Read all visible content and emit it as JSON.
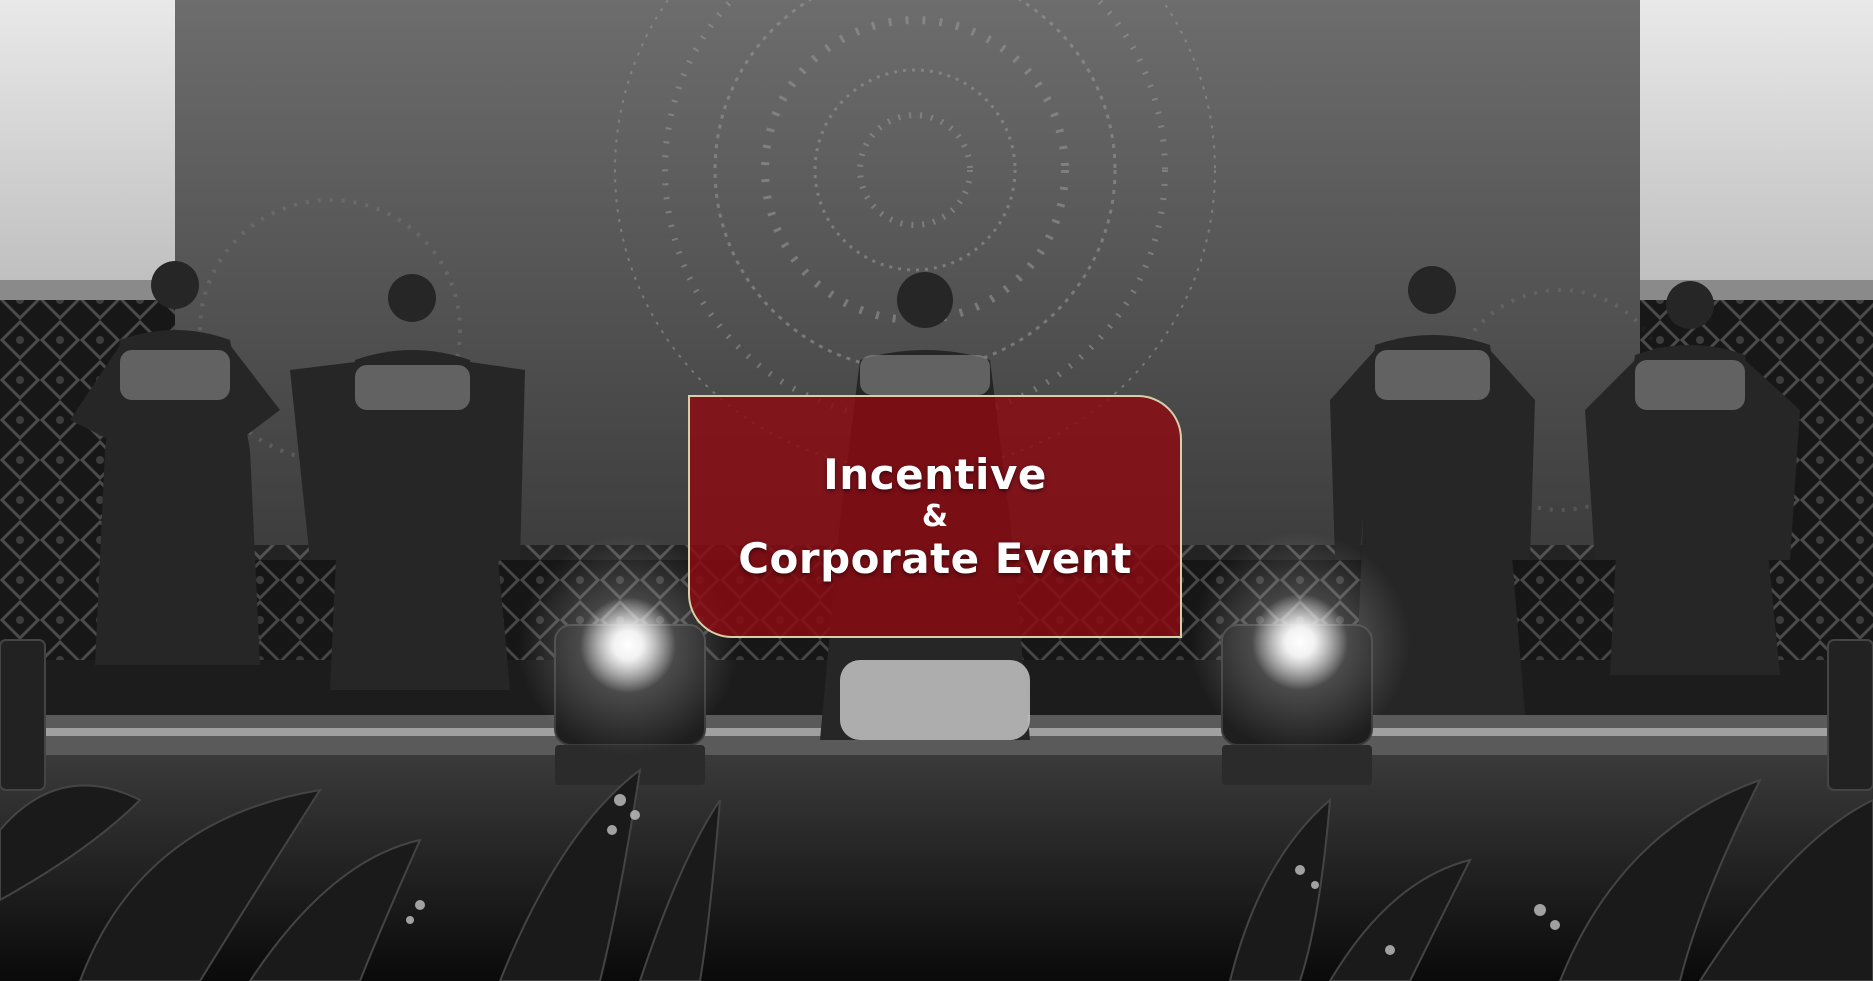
{
  "hero": {
    "title_line1": "Incentive",
    "title_line2": "&",
    "title_line3": "Corporate Event",
    "card_color": "#8c0a12",
    "border_color": "#d8cfa8"
  },
  "photo": {
    "tone": "grayscale"
  }
}
